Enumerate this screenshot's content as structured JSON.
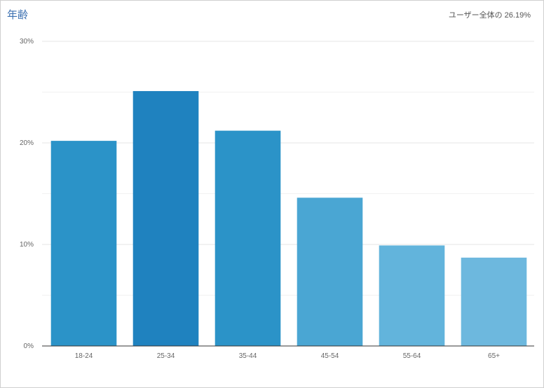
{
  "header": {
    "title": "年齢",
    "summary": "ユーザー全体の 26.19%"
  },
  "chart_data": {
    "type": "bar",
    "categories": [
      "18-24",
      "25-34",
      "35-44",
      "45-54",
      "55-64",
      "65+"
    ],
    "values": [
      20.2,
      25.1,
      21.2,
      14.6,
      9.9,
      8.7
    ],
    "bar_colors": [
      "#2b93c8",
      "#1f82bf",
      "#2b93c8",
      "#4aa6d3",
      "#62b4dc",
      "#6db8de"
    ],
    "y_ticks": [
      "0%",
      "10%",
      "20%",
      "30%"
    ],
    "ylim": [
      0,
      30
    ],
    "grid": true,
    "title": "",
    "xlabel": "",
    "ylabel": ""
  }
}
